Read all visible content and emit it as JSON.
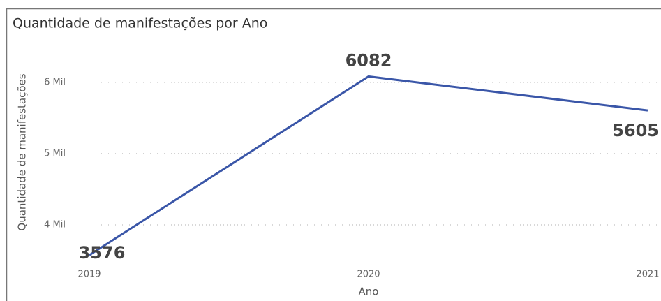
{
  "chart_data": {
    "type": "line",
    "title": "Quantidade de manifestações por Ano",
    "x_label": "Ano",
    "y_label": "Quantidade de manifestações",
    "categories": [
      "2019",
      "2020",
      "2021"
    ],
    "series": [
      {
        "name": "Quantidade de manifestações",
        "color": "#3a56a8",
        "values": [
          3576,
          6082,
          5605
        ]
      }
    ],
    "ylim": [
      3500,
      6400
    ],
    "yticks": [
      {
        "value": 4000,
        "label": "4 Mil"
      },
      {
        "value": 5000,
        "label": "5 Mil"
      },
      {
        "value": 6000,
        "label": "6 Mil"
      }
    ],
    "grid": true
  }
}
